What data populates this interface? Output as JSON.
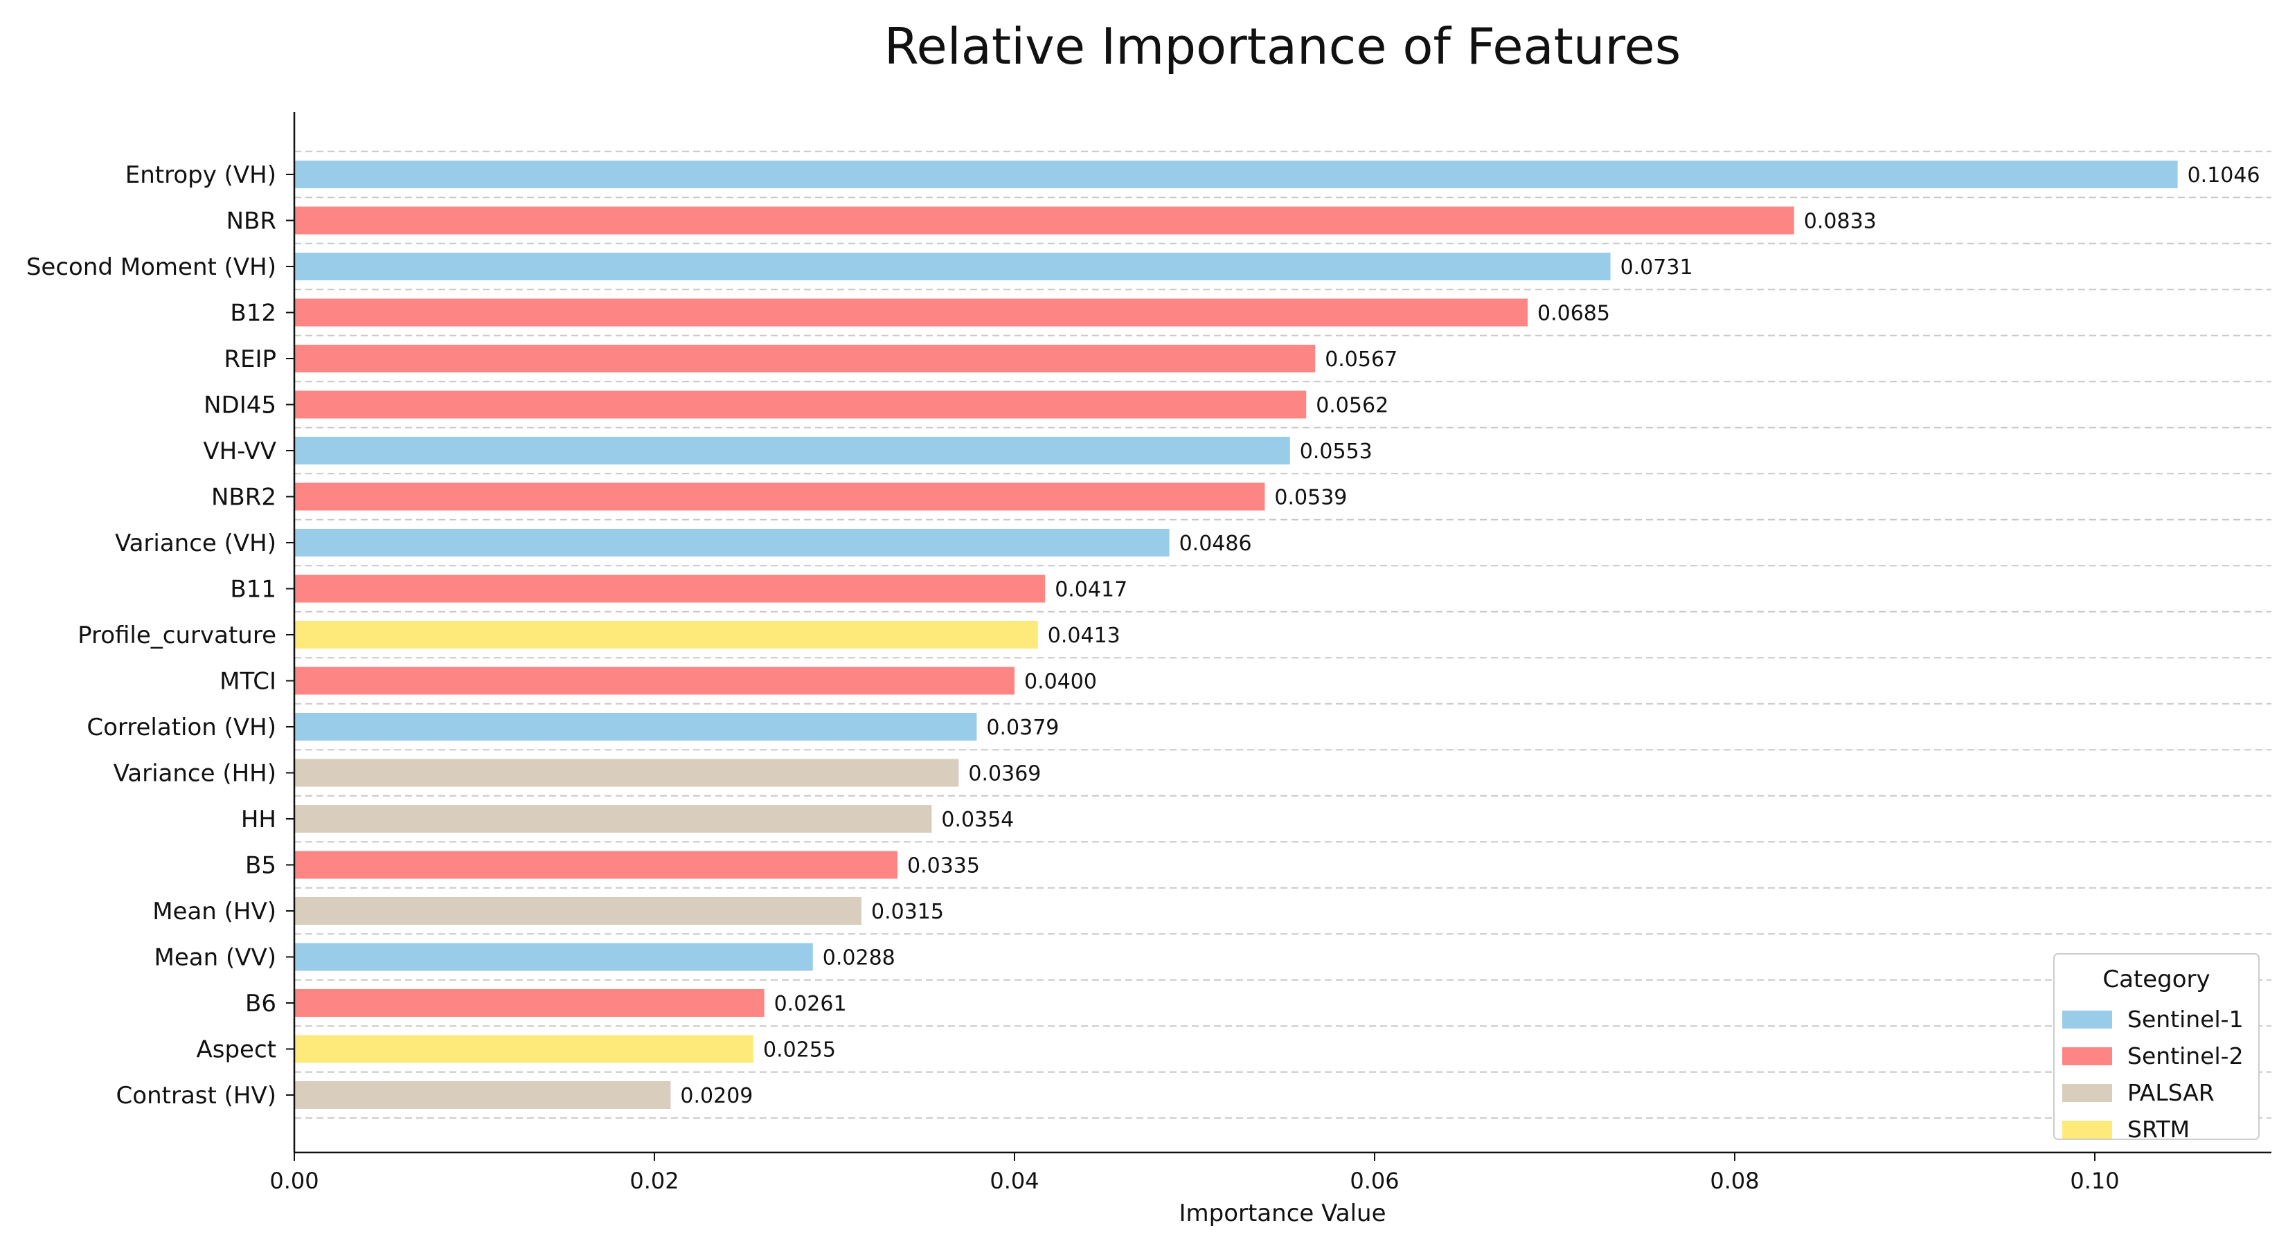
{
  "chart_data": {
    "type": "bar",
    "orientation": "horizontal",
    "title": "Relative Importance of Features",
    "xlabel": "Importance Value",
    "ylabel": "",
    "xlim": [
      0,
      0.11
    ],
    "xticks": [
      "0.00",
      "0.02",
      "0.04",
      "0.06",
      "0.08",
      "0.10"
    ],
    "xtick_values": [
      0,
      0.02,
      0.04,
      0.06,
      0.08,
      0.1
    ],
    "grid": "horizontal dashed",
    "legend": {
      "title": "Category",
      "position": "bottom-right",
      "entries": [
        {
          "name": "Sentinel-1",
          "color": "#99cce9"
        },
        {
          "name": "Sentinel-2",
          "color": "#fd8583"
        },
        {
          "name": "PALSAR",
          "color": "#d9cdbd"
        },
        {
          "name": "SRTM",
          "color": "#feea7a"
        }
      ]
    },
    "bars": [
      {
        "label": "Entropy (VH)",
        "value": 0.1046,
        "display": "0.1046",
        "category": "Sentinel-1"
      },
      {
        "label": "NBR",
        "value": 0.0833,
        "display": "0.0833",
        "category": "Sentinel-2"
      },
      {
        "label": "Second Moment (VH)",
        "value": 0.0731,
        "display": "0.0731",
        "category": "Sentinel-1"
      },
      {
        "label": "B12",
        "value": 0.0685,
        "display": "0.0685",
        "category": "Sentinel-2"
      },
      {
        "label": "REIP",
        "value": 0.0567,
        "display": "0.0567",
        "category": "Sentinel-2"
      },
      {
        "label": "NDI45",
        "value": 0.0562,
        "display": "0.0562",
        "category": "Sentinel-2"
      },
      {
        "label": "VH-VV",
        "value": 0.0553,
        "display": "0.0553",
        "category": "Sentinel-1"
      },
      {
        "label": "NBR2",
        "value": 0.0539,
        "display": "0.0539",
        "category": "Sentinel-2"
      },
      {
        "label": "Variance (VH)",
        "value": 0.0486,
        "display": "0.0486",
        "category": "Sentinel-1"
      },
      {
        "label": "B11",
        "value": 0.0417,
        "display": "0.0417",
        "category": "Sentinel-2"
      },
      {
        "label": "Profile_curvature",
        "value": 0.0413,
        "display": "0.0413",
        "category": "SRTM"
      },
      {
        "label": "MTCI",
        "value": 0.04,
        "display": "0.0400",
        "category": "Sentinel-2"
      },
      {
        "label": "Correlation (VH)",
        "value": 0.0379,
        "display": "0.0379",
        "category": "Sentinel-1"
      },
      {
        "label": "Variance (HH)",
        "value": 0.0369,
        "display": "0.0369",
        "category": "PALSAR"
      },
      {
        "label": "HH",
        "value": 0.0354,
        "display": "0.0354",
        "category": "PALSAR"
      },
      {
        "label": "B5",
        "value": 0.0335,
        "display": "0.0335",
        "category": "Sentinel-2"
      },
      {
        "label": "Mean (HV)",
        "value": 0.0315,
        "display": "0.0315",
        "category": "PALSAR"
      },
      {
        "label": "Mean (VV)",
        "value": 0.0288,
        "display": "0.0288",
        "category": "Sentinel-1"
      },
      {
        "label": "B6",
        "value": 0.0261,
        "display": "0.0261",
        "category": "Sentinel-2"
      },
      {
        "label": "Aspect",
        "value": 0.0255,
        "display": "0.0255",
        "category": "SRTM"
      },
      {
        "label": "Contrast (HV)",
        "value": 0.0209,
        "display": "0.0209",
        "category": "PALSAR"
      }
    ]
  }
}
